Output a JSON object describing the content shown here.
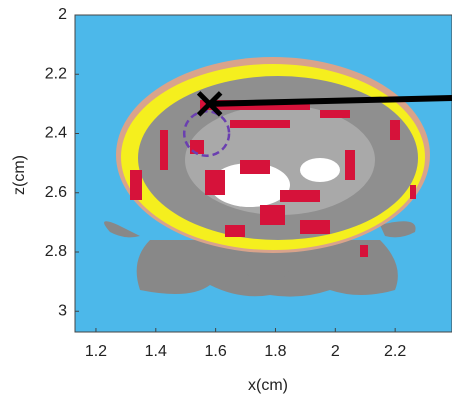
{
  "chart_data": {
    "type": "image",
    "xlabel": "x(cm)",
    "ylabel": "z(cm)",
    "xlim": [
      1.13,
      2.39
    ],
    "ylim": [
      2,
      3.07
    ],
    "y_reversed": true,
    "xticks": [
      1.2,
      1.4,
      1.6,
      1.8,
      2,
      2.2
    ],
    "yticks": [
      2,
      2.2,
      2.4,
      2.6,
      2.8,
      3
    ],
    "background_color": "#4cb8ea",
    "marker": {
      "x": 1.58,
      "y": 2.3,
      "color": "#000000"
    },
    "line_end": {
      "x": 2.39,
      "y": 2.28
    },
    "circle": {
      "x": 1.57,
      "y": 2.4,
      "r": 0.075,
      "color": "#6a3fb0"
    }
  }
}
